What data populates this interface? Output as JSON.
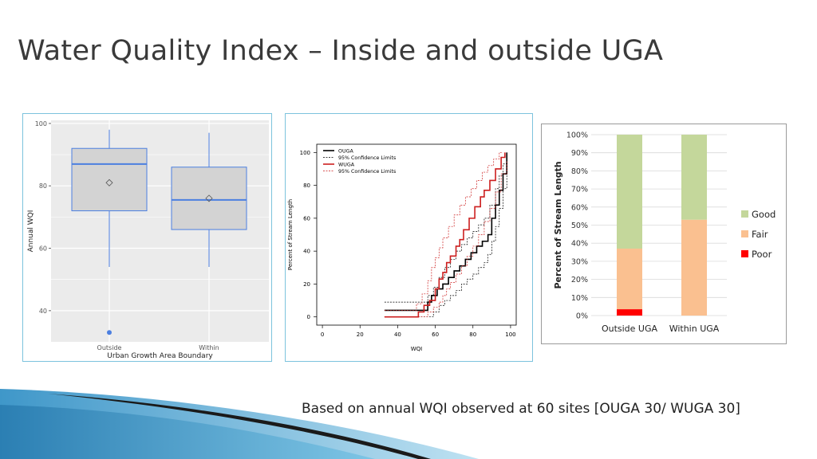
{
  "slide": {
    "title": "Water Quality Index – Inside and outside UGA",
    "caption": "Based on annual WQI observed at 60 sites [OUGA 30/ WUGA 30]"
  },
  "colors": {
    "box_line": "#4c7fe0",
    "box_fill": "#d3d3d3",
    "ougua": "#000000",
    "wuga": "#cc1f1f",
    "good": "#c4d79b",
    "fair": "#fac090",
    "poor": "#ff0000",
    "panel_border": "#7cc3dd"
  },
  "chart_data": [
    {
      "type": "box",
      "xlabel": "Urban Growth Area Boundary",
      "ylabel": "Annual WQI",
      "ylim": [
        30,
        101
      ],
      "yticks": [
        "40",
        "60",
        "80",
        "100"
      ],
      "grid": true,
      "boxes": [
        {
          "category": "Outside",
          "whisker_low": 54,
          "q1": 72,
          "median": 87,
          "q3": 92,
          "whisker_high": 98,
          "mean": 81,
          "outliers": [
            33
          ]
        },
        {
          "category": "Within",
          "whisker_low": 54,
          "q1": 66,
          "median": 75.5,
          "q3": 86,
          "whisker_high": 97,
          "mean": 76,
          "outliers": []
        }
      ]
    },
    {
      "type": "line",
      "xlabel": "WQI",
      "ylabel": "Percent of Stream Length",
      "xlim": [
        -3,
        103
      ],
      "ylim": [
        -5,
        105
      ],
      "xticks": [
        "0",
        "20",
        "40",
        "60",
        "80",
        "100"
      ],
      "yticks": [
        "0",
        "20",
        "40",
        "60",
        "80",
        "100"
      ],
      "legend": [
        "OUGA",
        "95% Confidence Limits",
        "WUGA",
        "95% Confidence Limits"
      ],
      "series": [
        {
          "name": "OUGA",
          "x": [
            33,
            54,
            56,
            58,
            61,
            64,
            67,
            70,
            73,
            76,
            79,
            82,
            85,
            88,
            90,
            92,
            94,
            96,
            98
          ],
          "y": [
            4,
            4,
            9,
            13,
            17,
            20,
            24,
            28,
            31,
            35,
            39,
            43,
            46,
            50,
            60,
            68,
            77,
            87,
            100
          ]
        },
        {
          "name": "OUGA 95% Confidence Limits",
          "x": [
            33,
            54,
            56,
            59,
            62,
            65,
            68,
            71,
            74,
            77,
            80,
            83,
            86,
            89,
            92,
            94,
            96,
            98
          ],
          "y": [
            9,
            9,
            13,
            18,
            24,
            30,
            35,
            40,
            44,
            48,
            52,
            56,
            60,
            68,
            78,
            86,
            93,
            100
          ]
        },
        {
          "name": "OUGA 95% Confidence Limits",
          "x": [
            33,
            56,
            59,
            62,
            65,
            68,
            71,
            74,
            77,
            80,
            83,
            86,
            88,
            90,
            92,
            94,
            96,
            98
          ],
          "y": [
            0,
            0,
            3,
            7,
            10,
            13,
            16,
            20,
            23,
            26,
            30,
            33,
            38,
            46,
            55,
            66,
            78,
            95
          ]
        },
        {
          "name": "WUGA",
          "x": [
            33,
            47,
            51,
            54,
            57,
            60,
            62,
            64,
            66,
            68,
            71,
            73,
            75,
            78,
            81,
            84,
            86,
            89,
            92,
            95,
            97
          ],
          "y": [
            0,
            0,
            3,
            7,
            10,
            17,
            23,
            27,
            33,
            37,
            43,
            47,
            53,
            60,
            67,
            73,
            77,
            83,
            90,
            97,
            100
          ]
        },
        {
          "name": "WUGA 95% Confidence Limits",
          "x": [
            33,
            46,
            50,
            53,
            56,
            58,
            60,
            62,
            64,
            67,
            70,
            73,
            76,
            79,
            82,
            85,
            88,
            91,
            94,
            96
          ],
          "y": [
            4,
            4,
            8,
            14,
            22,
            30,
            36,
            42,
            48,
            55,
            62,
            68,
            73,
            78,
            83,
            88,
            92,
            96,
            100,
            100
          ]
        },
        {
          "name": "WUGA 95% Confidence Limits",
          "x": [
            33,
            53,
            56,
            59,
            62,
            64,
            66,
            68,
            71,
            74,
            77,
            80,
            83,
            86,
            89,
            92,
            95,
            98
          ],
          "y": [
            0,
            0,
            3,
            6,
            9,
            13,
            17,
            21,
            26,
            31,
            37,
            43,
            50,
            58,
            66,
            76,
            87,
            95
          ]
        }
      ]
    },
    {
      "type": "bar",
      "stacked": true,
      "categories": [
        "Outside UGA",
        "Within UGA"
      ],
      "ylabel": "Percent of Stream Length",
      "ylim": [
        0,
        100
      ],
      "yticks": [
        "0%",
        "10%",
        "20%",
        "30%",
        "40%",
        "50%",
        "60%",
        "70%",
        "80%",
        "90%",
        "100%"
      ],
      "legend_position": "right",
      "series": [
        {
          "name": "Poor",
          "values": [
            3.5,
            0
          ]
        },
        {
          "name": "Fair",
          "values": [
            33.5,
            53
          ]
        },
        {
          "name": "Good",
          "values": [
            63,
            47
          ]
        }
      ]
    }
  ]
}
